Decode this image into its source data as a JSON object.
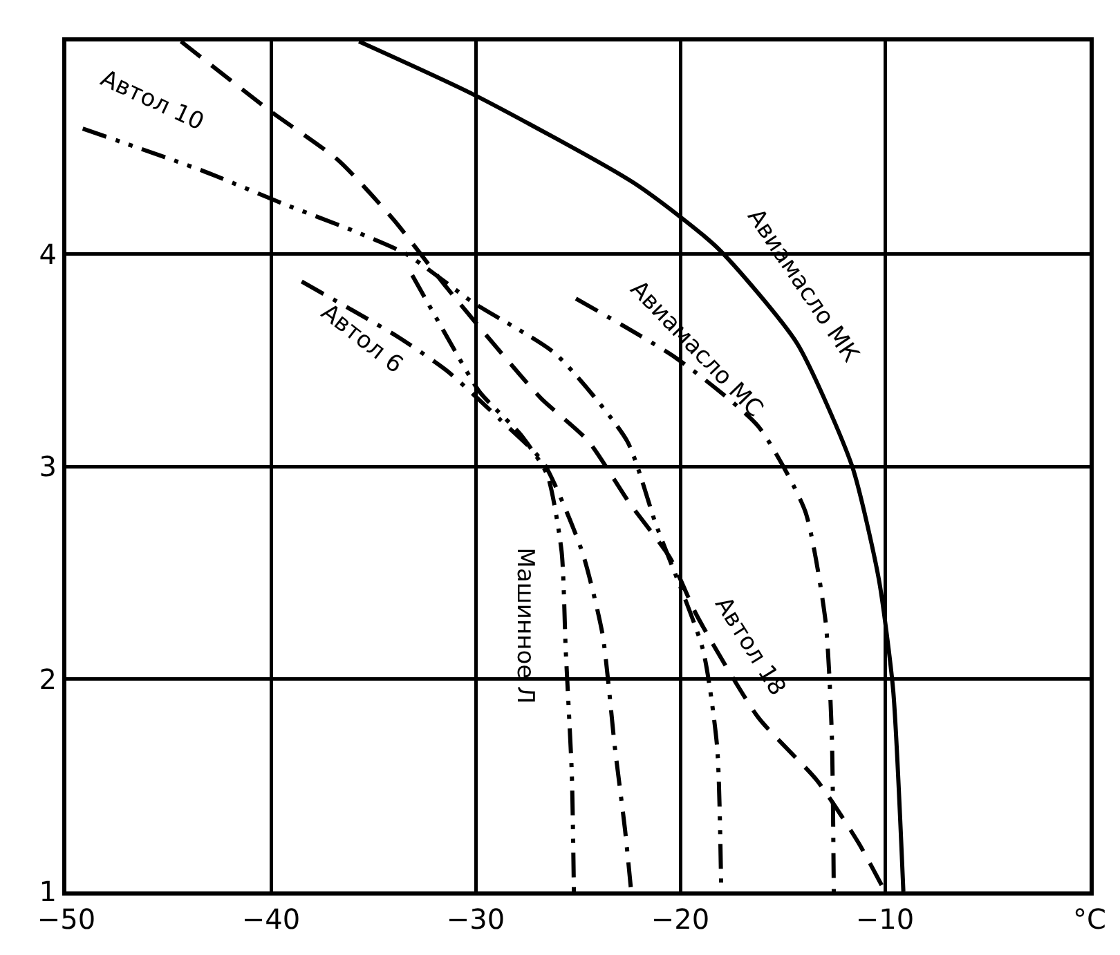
{
  "chart_data": {
    "type": "line",
    "xlim": [
      -50,
      0
    ],
    "ylim": [
      1,
      5
    ],
    "xticks": [
      -50,
      -40,
      -30,
      -20,
      -10,
      {
        "value": 0,
        "label": "°C"
      }
    ],
    "yticks": [
      1,
      2,
      3,
      4
    ],
    "grid": true,
    "legend": false,
    "marker": "none",
    "series": [
      {
        "name": "Автол 10",
        "color": "#000000",
        "line_style": "dashdotdot",
        "x": [
          -49.2,
          -43.3,
          -39.5,
          -36.0,
          -33.4,
          -30.1,
          -26.1,
          -22.6,
          -21.2,
          -18.9,
          -18.2,
          -18.0
        ],
        "values": [
          4.59,
          4.39,
          4.24,
          4.11,
          4.0,
          3.77,
          3.53,
          3.12,
          2.73,
          2.14,
          1.68,
          1.0
        ]
      },
      {
        "name": "Автол 6",
        "color": "#000000",
        "line_style": "dashdot",
        "x": [
          -38.5,
          -33.8,
          -31.4,
          -28.8,
          -26.7,
          -24.8,
          -23.8,
          -23.2,
          -22.7,
          -22.4
        ],
        "values": [
          3.87,
          3.61,
          3.45,
          3.22,
          3.02,
          2.6,
          2.21,
          1.68,
          1.29,
          1.0
        ]
      },
      {
        "name": "Машинное Л",
        "color": "#000000",
        "line_style": "dashdotdot",
        "x": [
          -33.1,
          -31.4,
          -29.8,
          -27.8,
          -26.5,
          -25.8,
          -25.6,
          -25.3,
          -25.2
        ],
        "values": [
          3.9,
          3.61,
          3.35,
          3.15,
          2.96,
          2.6,
          2.14,
          1.55,
          1.0
        ]
      },
      {
        "name": "Автол 18",
        "color": "#000000",
        "line_style": "dashed",
        "x": [
          -44.4,
          -40.0,
          -36.7,
          -34.0,
          -31.4,
          -28.8,
          -26.8,
          -24.5,
          -22.5,
          -20.5,
          -19.2,
          -16.2,
          -13.3,
          -11.3,
          -10.0
        ],
        "values": [
          5.0,
          4.67,
          4.44,
          4.16,
          3.84,
          3.54,
          3.32,
          3.12,
          2.83,
          2.57,
          2.3,
          1.82,
          1.52,
          1.23,
          1.0
        ]
      },
      {
        "name": "Авиамасло МС",
        "color": "#000000",
        "line_style": "dashdot",
        "x": [
          -25.1,
          -20.2,
          -16.2,
          -13.9,
          -12.9,
          -12.6,
          -12.5
        ],
        "values": [
          3.79,
          3.51,
          3.19,
          2.79,
          2.27,
          1.75,
          1.0
        ]
      },
      {
        "name": "Авиамасло МК",
        "color": "#000000",
        "line_style": "solid",
        "x": [
          -35.7,
          -30.1,
          -22.2,
          -18.2,
          -14.3,
          -11.6,
          -10.3,
          -9.6,
          -9.1
        ],
        "values": [
          5.0,
          4.75,
          4.33,
          4.03,
          3.58,
          3.0,
          2.47,
          1.95,
          1.0
        ]
      }
    ]
  }
}
